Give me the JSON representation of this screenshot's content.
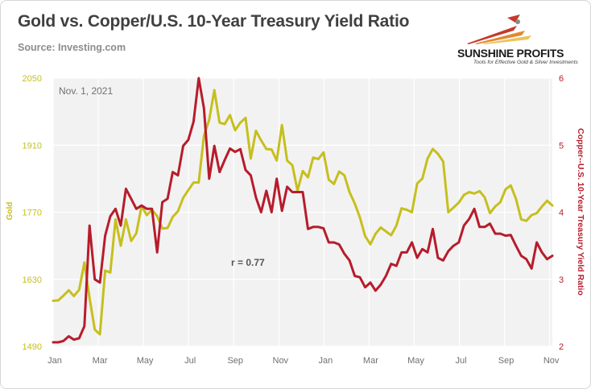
{
  "header": {
    "title": "Gold vs. Copper/U.S. 10-Year Treasury Yield Ratio",
    "source": "Source: Investing.com"
  },
  "logo": {
    "name": "SUNSHINE PROFITS",
    "tagline": "Tools for Effective Gold & Silver Investments"
  },
  "colors": {
    "gold": "#c6bf1d",
    "ratio": "#b71c2b",
    "plot_bg": "#f2f2f2",
    "grid": "#ffffff",
    "axis_text": "#707070"
  },
  "chart_data": {
    "type": "line",
    "annotations": {
      "date_label": "Nov. 1, 2021",
      "correlation": "r = 0.77"
    },
    "x_ticks": [
      "Jan",
      "Mar",
      "May",
      "Jul",
      "Sep",
      "Nov",
      "Jan",
      "Mar",
      "May",
      "Jul",
      "Sep",
      "Nov"
    ],
    "x_range_weeks": [
      0,
      96
    ],
    "y_left": {
      "label": "Gold",
      "ticks": [
        1490,
        1630,
        1770,
        1910,
        2050
      ],
      "range": [
        1490,
        2050
      ]
    },
    "y_right": {
      "label": "Copper--U.S. 10-Year Treasury Yield Ratio",
      "ticks": [
        2,
        3,
        4,
        5,
        6
      ],
      "range": [
        2,
        6
      ]
    },
    "grid": true,
    "series": [
      {
        "name": "Gold",
        "axis": "left",
        "values": [
          1585,
          1586,
          1596,
          1607,
          1595,
          1608,
          1665,
          1591,
          1525,
          1515,
          1648,
          1644,
          1755,
          1700,
          1755,
          1710,
          1726,
          1783,
          1764,
          1775,
          1762,
          1736,
          1737,
          1760,
          1772,
          1800,
          1816,
          1832,
          1832,
          1930,
          1963,
          2025,
          1957,
          1954,
          1973,
          1941,
          1957,
          1967,
          1882,
          1940,
          1920,
          1902,
          1901,
          1878,
          1952,
          1878,
          1868,
          1815,
          1856,
          1843,
          1884,
          1881,
          1895,
          1838,
          1829,
          1855,
          1847,
          1812,
          1788,
          1759,
          1720,
          1703,
          1725,
          1738,
          1730,
          1722,
          1742,
          1778,
          1775,
          1770,
          1830,
          1840,
          1882,
          1902,
          1892,
          1876,
          1770,
          1780,
          1790,
          1806,
          1812,
          1809,
          1814,
          1801,
          1768,
          1782,
          1791,
          1818,
          1826,
          1798,
          1755,
          1752,
          1764,
          1768,
          1782,
          1794,
          1784
        ]
      },
      {
        "name": "Copper/U.S. 10-Year Treasury Yield Ratio",
        "axis": "right",
        "values": [
          2.06,
          2.06,
          2.08,
          2.15,
          2.1,
          2.12,
          2.3,
          3.8,
          3.0,
          2.95,
          3.65,
          3.94,
          4.05,
          3.8,
          4.35,
          4.2,
          4.05,
          4.1,
          4.05,
          4.05,
          3.4,
          4.15,
          4.2,
          4.6,
          4.55,
          4.99,
          5.08,
          5.35,
          6.0,
          5.55,
          4.5,
          4.99,
          4.6,
          4.78,
          4.95,
          4.9,
          4.94,
          4.63,
          4.55,
          4.22,
          4.0,
          4.32,
          4.0,
          4.5,
          4.02,
          4.38,
          4.3,
          4.3,
          4.3,
          3.75,
          3.78,
          3.78,
          3.76,
          3.55,
          3.55,
          3.52,
          3.38,
          3.28,
          3.05,
          3.03,
          2.88,
          2.95,
          2.83,
          2.92,
          3.05,
          3.23,
          3.2,
          3.4,
          3.4,
          3.55,
          3.32,
          3.45,
          3.4,
          3.75,
          3.32,
          3.28,
          3.42,
          3.5,
          3.55,
          3.8,
          3.9,
          4.05,
          3.78,
          3.78,
          3.83,
          3.68,
          3.68,
          3.65,
          3.66,
          3.5,
          3.35,
          3.3,
          3.16,
          3.55,
          3.4,
          3.3,
          3.35
        ]
      }
    ]
  }
}
